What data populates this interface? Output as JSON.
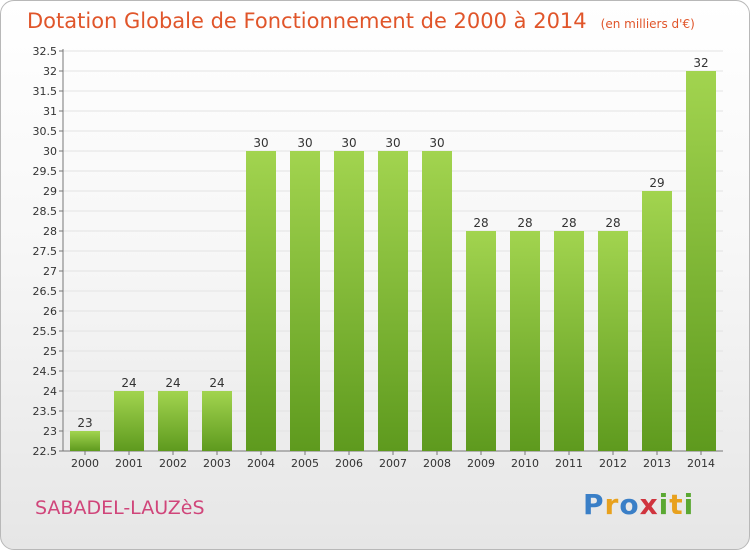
{
  "header": {
    "title": "Dotation Globale de Fonctionnement de 2000 à 2014",
    "subtitle": "(en milliers d'€)"
  },
  "footer": {
    "commune": "SABADEL-LAUZèS",
    "brand_letters": [
      {
        "ch": "P",
        "color": "#3a7fc7"
      },
      {
        "ch": "r",
        "color": "#e8a11d"
      },
      {
        "ch": "o",
        "color": "#3a7fc7"
      },
      {
        "ch": "x",
        "color": "#d0343e"
      },
      {
        "ch": "i",
        "color": "#5aa832"
      },
      {
        "ch": "t",
        "color": "#e8a11d"
      },
      {
        "ch": "i",
        "color": "#5aa832"
      }
    ]
  },
  "colors": {
    "bar_top": "#a2d44f",
    "bar_bottom": "#5e9a1e",
    "grid": "#e3e3e3",
    "axis": "#777777",
    "text": "#333333"
  },
  "chart_data": {
    "type": "bar",
    "title": "Dotation Globale de Fonctionnement de 2000 à 2014",
    "subtitle": "(en milliers d'€)",
    "categories": [
      "2000",
      "2001",
      "2002",
      "2003",
      "2004",
      "2005",
      "2006",
      "2007",
      "2008",
      "2009",
      "2010",
      "2011",
      "2012",
      "2013",
      "2014"
    ],
    "values": [
      23,
      24,
      24,
      24,
      30,
      30,
      30,
      30,
      30,
      28,
      28,
      28,
      28,
      29,
      32
    ],
    "value_labels": [
      "23",
      "24",
      "24",
      "24",
      "30",
      "30",
      "30",
      "30",
      "30",
      "28",
      "28",
      "28",
      "28",
      "29",
      "32"
    ],
    "ylim": [
      22.5,
      32.5
    ],
    "yticks": [
      "22.5",
      "23",
      "23.5",
      "24",
      "24.5",
      "25",
      "25.5",
      "26",
      "26.5",
      "27",
      "27.5",
      "28",
      "28.5",
      "29",
      "29.5",
      "30",
      "30.5",
      "31",
      "31.5",
      "32",
      "32.5"
    ],
    "grid": true,
    "legend": "none"
  }
}
